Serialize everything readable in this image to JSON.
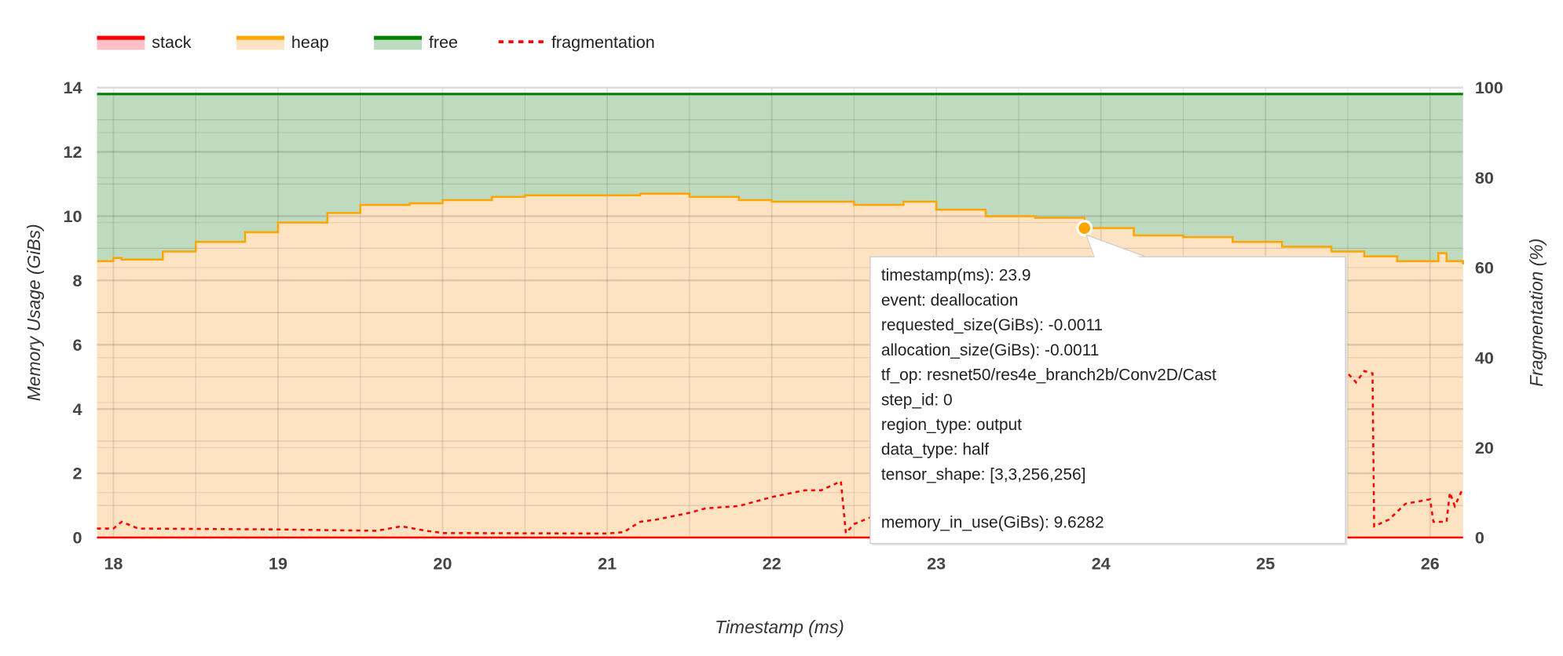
{
  "chart_data": {
    "type": "area",
    "title": "",
    "xlabel": "Timestamp (ms)",
    "ylabel": "Memory Usage (GiBs)",
    "y2label": "Fragmentation (%)",
    "xlim": [
      17.9,
      26.2
    ],
    "ylim": [
      0,
      14
    ],
    "y2lim": [
      0,
      100
    ],
    "x_ticks": [
      "18",
      "19",
      "20",
      "21",
      "22",
      "23",
      "24",
      "25",
      "26"
    ],
    "y_ticks": [
      "0",
      "2",
      "4",
      "6",
      "8",
      "10",
      "12",
      "14"
    ],
    "y2_ticks": [
      "0",
      "20",
      "40",
      "60",
      "80",
      "100"
    ],
    "grid": true,
    "legend_position": "top-left",
    "colors": {
      "stack": "#ff0000",
      "stack_fill": "#ffc0c8",
      "heap": "#ffa500",
      "heap_fill": "#fde3c2",
      "free": "#008000",
      "free_fill": "#bfdbbf",
      "fragmentation": "#ff0000"
    },
    "series": [
      {
        "name": "stack",
        "axis": "left",
        "style": "area",
        "x": [
          17.9,
          26.2
        ],
        "y": [
          0,
          0
        ]
      },
      {
        "name": "heap",
        "axis": "left",
        "style": "area",
        "x": [
          17.9,
          18.0,
          18.05,
          18.3,
          18.5,
          18.8,
          19.0,
          19.3,
          19.5,
          19.8,
          20.0,
          20.3,
          20.5,
          21.0,
          21.2,
          21.5,
          21.8,
          22.0,
          22.5,
          22.8,
          23.0,
          23.3,
          23.6,
          23.9,
          24.2,
          24.5,
          24.8,
          25.1,
          25.4,
          25.6,
          25.8,
          25.95,
          26.05,
          26.1,
          26.2
        ],
        "y": [
          8.6,
          8.7,
          8.65,
          8.9,
          9.2,
          9.5,
          9.8,
          10.1,
          10.35,
          10.4,
          10.5,
          10.6,
          10.65,
          10.65,
          10.7,
          10.6,
          10.5,
          10.45,
          10.35,
          10.45,
          10.2,
          10.0,
          9.95,
          9.63,
          9.4,
          9.35,
          9.2,
          9.05,
          8.9,
          8.75,
          8.6,
          8.6,
          8.85,
          8.6,
          8.5
        ]
      },
      {
        "name": "free",
        "axis": "left",
        "style": "area",
        "x": [
          17.9,
          26.2
        ],
        "y": [
          13.8,
          13.8
        ]
      },
      {
        "name": "fragmentation",
        "axis": "right",
        "style": "dashed-line",
        "x": [
          17.9,
          18.0,
          18.05,
          18.15,
          19.0,
          19.6,
          19.75,
          19.9,
          20.0,
          21.0,
          21.1,
          21.2,
          21.3,
          21.5,
          21.6,
          21.8,
          22.0,
          22.2,
          22.3,
          22.42,
          22.45,
          22.5,
          22.6,
          23.0,
          23.5,
          24.0,
          24.5,
          25.0,
          25.4,
          25.5,
          25.55,
          25.6,
          25.65,
          25.66,
          25.75,
          25.85,
          26.0,
          26.02,
          26.1,
          26.12,
          26.15,
          26.2
        ],
        "y": [
          2,
          2,
          3.5,
          2,
          1.8,
          1.5,
          2.5,
          1.5,
          1,
          0.9,
          1.2,
          3.5,
          4,
          5.5,
          6.5,
          7,
          9,
          10.5,
          10.5,
          12.5,
          1,
          3,
          4.5,
          8,
          14,
          20,
          26,
          31,
          35,
          36.5,
          34.5,
          37,
          36.5,
          2.5,
          4,
          7.5,
          8.5,
          3.5,
          3.5,
          10,
          7,
          11
        ]
      }
    ],
    "highlight_point": {
      "x": 23.9,
      "y": 9.6282,
      "series": "heap"
    }
  },
  "legend": [
    {
      "label": "stack"
    },
    {
      "label": "heap"
    },
    {
      "label": "free"
    },
    {
      "label": "fragmentation"
    }
  ],
  "tooltip": {
    "lines": [
      "timestamp(ms): 23.9",
      "event: deallocation",
      "requested_size(GiBs): -0.0011",
      "allocation_size(GiBs): -0.0011",
      "tf_op: resnet50/res4e_branch2b/Conv2D/Cast",
      "step_id: 0",
      "region_type: output",
      "data_type: half",
      "tensor_shape: [3,3,256,256]",
      "memory_in_use(GiBs): 9.6282"
    ]
  }
}
